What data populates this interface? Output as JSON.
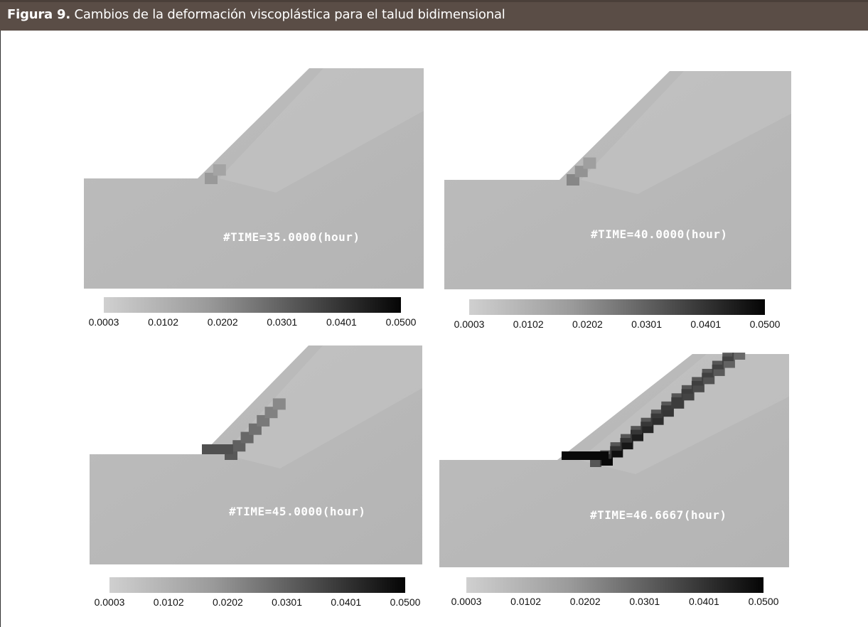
{
  "caption": {
    "label": "Figura 9.",
    "text": " Cambios de la deformación viscoplástica para el talud bidimensional"
  },
  "colors": {
    "caption_bar": "#5a4d46",
    "soil_base": "#b9b9b9",
    "colorbar_low": "#d0d0d0",
    "colorbar_high": "#050505"
  },
  "panels": [
    {
      "time_label": "#TIME=35.0000(hour)",
      "stage": 0
    },
    {
      "time_label": "#TIME=40.0000(hour)",
      "stage": 1
    },
    {
      "time_label": "#TIME=45.0000(hour)",
      "stage": 2
    },
    {
      "time_label": "#TIME=46.6667(hour)",
      "stage": 3
    }
  ],
  "colorbar": {
    "ticks": [
      "0.0003",
      "0.0102",
      "0.0202",
      "0.0301",
      "0.0401",
      "0.0500"
    ]
  }
}
